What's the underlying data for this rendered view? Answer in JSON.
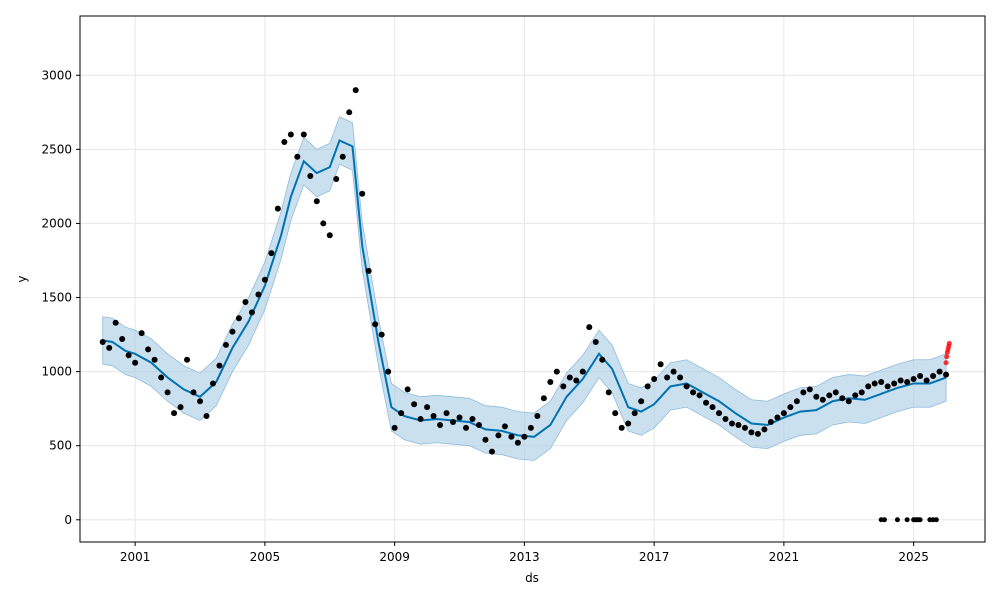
{
  "chart_data": {
    "type": "scatter",
    "title": "",
    "xlabel": "ds",
    "ylabel": "y",
    "xlim": [
      1999.3,
      2027.2
    ],
    "ylim": [
      -150,
      3400
    ],
    "x_ticks": [
      2001,
      2005,
      2009,
      2013,
      2017,
      2021,
      2025
    ],
    "x_tick_labels": [
      "2001",
      "2005",
      "2009",
      "2013",
      "2017",
      "2021",
      "2025"
    ],
    "y_ticks": [
      0,
      500,
      1000,
      1500,
      2000,
      2500,
      3000
    ],
    "y_tick_labels": [
      "0",
      "500",
      "1000",
      "1500",
      "2000",
      "2500",
      "3000"
    ],
    "grid": true,
    "colors": {
      "observed": "#000000",
      "forecast": "#0072b2",
      "interval": "#a8cce4",
      "anomaly": "#ff0000",
      "grid": "#e6e6e6"
    },
    "forecast": {
      "x": [
        2000.0,
        2000.3,
        2000.7,
        2001.0,
        2001.5,
        2002.0,
        2002.5,
        2003.0,
        2003.5,
        2004.0,
        2004.5,
        2005.0,
        2005.5,
        2005.8,
        2006.2,
        2006.6,
        2007.0,
        2007.3,
        2007.7,
        2008.0,
        2008.5,
        2008.9,
        2009.3,
        2009.8,
        2010.3,
        2010.8,
        2011.3,
        2011.8,
        2012.3,
        2012.8,
        2013.3,
        2013.8,
        2014.3,
        2014.8,
        2015.3,
        2015.7,
        2016.2,
        2016.6,
        2017.0,
        2017.5,
        2018.0,
        2018.5,
        2019.0,
        2019.5,
        2020.0,
        2020.5,
        2021.0,
        2021.5,
        2022.0,
        2022.5,
        2023.0,
        2023.5,
        2024.0,
        2024.5,
        2025.0,
        2025.5,
        2026.0
      ],
      "yhat": [
        1210,
        1200,
        1140,
        1120,
        1060,
        960,
        880,
        830,
        930,
        1160,
        1340,
        1580,
        1920,
        2180,
        2420,
        2340,
        2380,
        2560,
        2520,
        1850,
        1200,
        760,
        700,
        670,
        680,
        670,
        660,
        610,
        600,
        570,
        560,
        640,
        830,
        950,
        1120,
        1020,
        760,
        730,
        780,
        900,
        920,
        860,
        800,
        720,
        650,
        640,
        690,
        730,
        740,
        800,
        820,
        810,
        850,
        890,
        920,
        920,
        960
      ],
      "band": 160
    },
    "observed": {
      "x": [
        2000.0,
        2000.2,
        2000.4,
        2000.6,
        2000.8,
        2001.0,
        2001.2,
        2001.4,
        2001.6,
        2001.8,
        2002.0,
        2002.2,
        2002.4,
        2002.6,
        2002.8,
        2003.0,
        2003.2,
        2003.4,
        2003.6,
        2003.8,
        2004.0,
        2004.2,
        2004.4,
        2004.6,
        2004.8,
        2005.0,
        2005.2,
        2005.4,
        2005.6,
        2005.8,
        2006.0,
        2006.2,
        2006.4,
        2006.6,
        2006.8,
        2007.0,
        2007.2,
        2007.4,
        2007.6,
        2007.8,
        2008.0,
        2008.2,
        2008.4,
        2008.6,
        2008.8,
        2009.0,
        2009.2,
        2009.4,
        2009.6,
        2009.8,
        2010.0,
        2010.2,
        2010.4,
        2010.6,
        2010.8,
        2011.0,
        2011.2,
        2011.4,
        2011.6,
        2011.8,
        2012.0,
        2012.2,
        2012.4,
        2012.6,
        2012.8,
        2013.0,
        2013.2,
        2013.4,
        2013.6,
        2013.8,
        2014.0,
        2014.2,
        2014.4,
        2014.6,
        2014.8,
        2015.0,
        2015.2,
        2015.4,
        2015.6,
        2015.8,
        2016.0,
        2016.2,
        2016.4,
        2016.6,
        2016.8,
        2017.0,
        2017.2,
        2017.4,
        2017.6,
        2017.8,
        2018.0,
        2018.2,
        2018.4,
        2018.6,
        2018.8,
        2019.0,
        2019.2,
        2019.4,
        2019.6,
        2019.8,
        2020.0,
        2020.2,
        2020.4,
        2020.6,
        2020.8,
        2021.0,
        2021.2,
        2021.4,
        2021.6,
        2021.8,
        2022.0,
        2022.2,
        2022.4,
        2022.6,
        2022.8,
        2023.0,
        2023.2,
        2023.4,
        2023.6,
        2023.8,
        2024.0,
        2024.2,
        2024.4,
        2024.6,
        2024.8,
        2025.0,
        2025.2,
        2025.4,
        2025.6,
        2025.8,
        2026.0
      ],
      "y": [
        1200,
        1160,
        1330,
        1220,
        1110,
        1060,
        1260,
        1150,
        1080,
        960,
        860,
        720,
        760,
        1080,
        860,
        800,
        700,
        920,
        1040,
        1180,
        1270,
        1360,
        1470,
        1400,
        1520,
        1620,
        1800,
        2100,
        2550,
        2600,
        2450,
        2600,
        2320,
        2150,
        2000,
        1920,
        2300,
        2450,
        2750,
        2900,
        2200,
        1680,
        1320,
        1250,
        1000,
        620,
        720,
        880,
        780,
        680,
        760,
        700,
        640,
        720,
        660,
        690,
        620,
        680,
        640,
        540,
        460,
        570,
        630,
        560,
        520,
        560,
        620,
        700,
        820,
        930,
        1000,
        900,
        960,
        940,
        1000,
        1300,
        1200,
        1080,
        860,
        720,
        620,
        650,
        720,
        800,
        900,
        950,
        1050,
        960,
        1000,
        960,
        900,
        860,
        840,
        790,
        760,
        720,
        680,
        650,
        640,
        620,
        590,
        580,
        610,
        660,
        690,
        720,
        760,
        800,
        860,
        880,
        830,
        810,
        840,
        860,
        820,
        800,
        840,
        860,
        900,
        920,
        930,
        900,
        920,
        940,
        930,
        950,
        970,
        940,
        970,
        1000,
        980
      ],
      "zeros_x": [
        2024.0,
        2024.1,
        2024.5,
        2024.8,
        2025.0,
        2025.05,
        2025.1,
        2025.15,
        2025.2,
        2025.5,
        2025.6,
        2025.7
      ]
    },
    "anomalies": {
      "x": [
        2026.0,
        2026.02,
        2026.04,
        2026.06,
        2026.08,
        2026.1
      ],
      "y": [
        1060,
        1100,
        1130,
        1150,
        1170,
        1190
      ]
    }
  }
}
